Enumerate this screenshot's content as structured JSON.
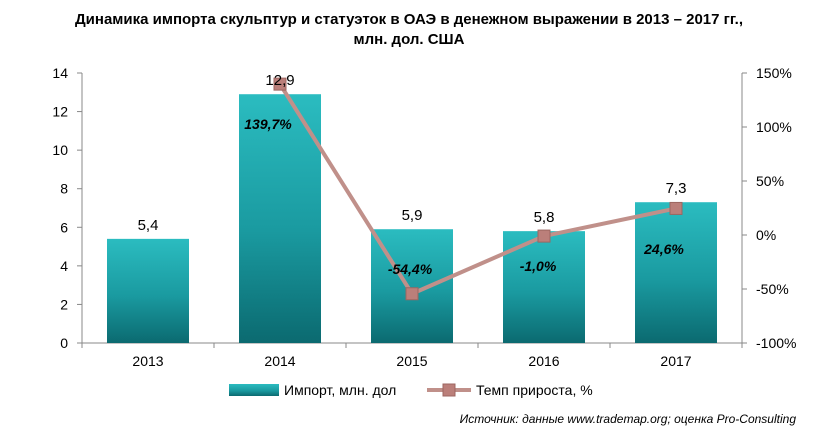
{
  "chart_data": {
    "type": "bar",
    "title_line1": "Динамика импорта скульптур и статуэток в ОАЭ в денежном выражении в 2013 – 2017 гг.,",
    "title_line2": "млн. дол. США",
    "categories": [
      "2013",
      "2014",
      "2015",
      "2016",
      "2017"
    ],
    "series": [
      {
        "name": "Импорт, млн. дол",
        "type": "bar",
        "axis": "left",
        "values": [
          5.4,
          12.9,
          5.9,
          5.8,
          7.3
        ],
        "labels": [
          "5,4",
          "12,9",
          "5,9",
          "5,8",
          "7,3"
        ]
      },
      {
        "name": "Темп прироста, %",
        "type": "line",
        "axis": "right",
        "values": [
          null,
          139.7,
          -54.4,
          -1.0,
          24.6
        ],
        "labels": [
          "",
          "139,7%",
          "-54,4%",
          "-1,0%",
          "24,6%"
        ]
      }
    ],
    "y_left": {
      "min": 0,
      "max": 14,
      "ticks": [
        "0",
        "2",
        "4",
        "6",
        "8",
        "10",
        "12",
        "14"
      ]
    },
    "y_right": {
      "min": -100,
      "max": 150,
      "ticks": [
        "-100%",
        "-50%",
        "0%",
        "50%",
        "100%",
        "150%"
      ]
    },
    "grid": false,
    "legend_position": "bottom",
    "colors": {
      "bar": "#1a9aa0",
      "bar_light": "#26b3b8",
      "bar_dark": "#0c6f74",
      "line": "#c0908a",
      "marker": "#bb7f7a"
    }
  },
  "source": "Источник: данные www.trademap.org; оценка Pro-Consulting"
}
